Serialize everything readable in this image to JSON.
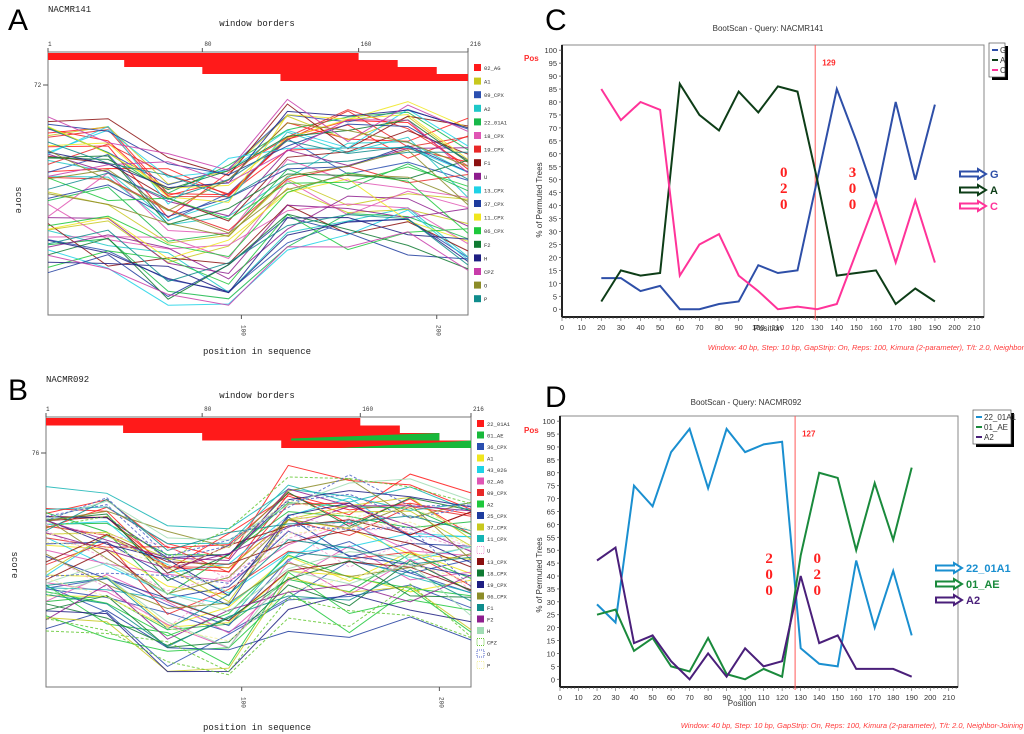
{
  "panels": {
    "A": {
      "letter": "A"
    },
    "B": {
      "letter": "B"
    },
    "C": {
      "letter": "C"
    },
    "D": {
      "letter": "D"
    }
  },
  "chart_data": [
    {
      "id": "A",
      "type": "line",
      "title": "NACMR141",
      "subtitle": "window borders",
      "xlabel": "position in sequence",
      "ylabel": "score",
      "top_ticks": [
        "1",
        "80",
        "160",
        "216"
      ],
      "bottom_ticks": [
        "100",
        "200"
      ],
      "y_tick": "72",
      "xlim": [
        1,
        216
      ],
      "top_bar_subtype": "02_AG",
      "top_bar_color": "#ff1a1a",
      "legend": [
        {
          "label": "02_AG",
          "color": "#ff1a1a"
        },
        {
          "label": "A1",
          "color": "#c8c81e"
        },
        {
          "label": "09_CPX",
          "color": "#2a4fb0"
        },
        {
          "label": "A2",
          "color": "#1ec8c8"
        },
        {
          "label": "22_01A1",
          "color": "#18b84a"
        },
        {
          "label": "18_CPX",
          "color": "#e056b4"
        },
        {
          "label": "19_CPX",
          "color": "#e82828"
        },
        {
          "label": "F1",
          "color": "#8b1010"
        },
        {
          "label": "U",
          "color": "#8e1e8e"
        },
        {
          "label": "13_CPX",
          "color": "#1ed2e6"
        },
        {
          "label": "37_CPX",
          "color": "#1e3c9e"
        },
        {
          "label": "11_CPX",
          "color": "#f0e61e"
        },
        {
          "label": "06_CPX",
          "color": "#1ec83c"
        },
        {
          "label": "F2",
          "color": "#0f7a32"
        },
        {
          "label": "H",
          "color": "#1e1e82"
        },
        {
          "label": "CPZ",
          "color": "#c83caa"
        },
        {
          "label": "O",
          "color": "#8c8c28"
        },
        {
          "label": "P",
          "color": "#0f8c8c"
        }
      ]
    },
    {
      "id": "B",
      "type": "line",
      "title": "NACMR092",
      "subtitle": "window borders",
      "xlabel": "position in sequence",
      "ylabel": "score",
      "top_ticks": [
        "1",
        "80",
        "160",
        "216"
      ],
      "bottom_ticks": [
        "100",
        "200"
      ],
      "y_tick": "76",
      "xlim": [
        1,
        216
      ],
      "top_bar_subtype": "22_01A1",
      "top_bar_color": "#ff1a1a",
      "secondary_bar_subtype": "01_AE",
      "secondary_bar_color": "#18b83a",
      "legend": [
        {
          "label": "22_01A1",
          "color": "#ff1a1a"
        },
        {
          "label": "01_AE",
          "color": "#18b83a"
        },
        {
          "label": "36_CPX",
          "color": "#2a4fb0"
        },
        {
          "label": "A1",
          "color": "#f0e61e"
        },
        {
          "label": "43_02G",
          "color": "#1ed2e6"
        },
        {
          "label": "02_AG",
          "color": "#e056b4"
        },
        {
          "label": "09_CPX",
          "color": "#e82828"
        },
        {
          "label": "A2",
          "color": "#1ec83c"
        },
        {
          "label": "25_CPX",
          "color": "#1e3c9e"
        },
        {
          "label": "37_CPX",
          "color": "#c8c81e"
        },
        {
          "label": "11_CPX",
          "color": "#14b4b4"
        },
        {
          "label": "U",
          "color": "#f0a0d2",
          "dashed": true
        },
        {
          "label": "13_CPX",
          "color": "#8b1010"
        },
        {
          "label": "18_CPX",
          "color": "#0f7a32"
        },
        {
          "label": "19_CPX",
          "color": "#1e1e82"
        },
        {
          "label": "06_CPX",
          "color": "#8c8c28"
        },
        {
          "label": "F1",
          "color": "#0f8c8c"
        },
        {
          "label": "F2",
          "color": "#8e1e8e"
        },
        {
          "label": "H",
          "color": "#a0dcb4"
        },
        {
          "label": "CPZ",
          "color": "#64c832",
          "dashed": true
        },
        {
          "label": "O",
          "color": "#5064c8",
          "dashed": true
        },
        {
          "label": "P",
          "color": "#f5f0a0",
          "dashed": true
        }
      ]
    },
    {
      "id": "C",
      "type": "line",
      "title": "BootScan - Query: NACMR141",
      "xlabel": "Position",
      "ylabel": "% of Permuted Trees",
      "xlim": [
        0,
        215
      ],
      "ylim": [
        -3,
        102
      ],
      "x_ticks": [
        0,
        10,
        20,
        30,
        40,
        50,
        60,
        70,
        80,
        90,
        100,
        110,
        120,
        130,
        140,
        150,
        160,
        170,
        180,
        190,
        200,
        210
      ],
      "y_ticks": [
        0,
        5,
        10,
        15,
        20,
        25,
        30,
        35,
        40,
        45,
        50,
        55,
        60,
        65,
        70,
        75,
        80,
        85,
        90,
        95,
        100
      ],
      "pos_label": "Pos",
      "breakpoint": 129,
      "breakpoint_label": "129",
      "footnote": "Window: 40 bp, Step: 10 bp, GapStrip: On, Reps: 100, Kimura (2-parameter), T/t: 2.0, Neighbor-Joining",
      "x": [
        20,
        30,
        40,
        50,
        60,
        70,
        80,
        90,
        100,
        110,
        120,
        130,
        140,
        150,
        160,
        170,
        180,
        190
      ],
      "series": [
        {
          "name": "G",
          "color": "#2e4fa8",
          "values": [
            12,
            12,
            7,
            9,
            0,
            0,
            2,
            3,
            17,
            14,
            15,
            50,
            85,
            65,
            43,
            80,
            50,
            79
          ]
        },
        {
          "name": "A",
          "color": "#0d3d17",
          "values": [
            3,
            15,
            13,
            14,
            87,
            75,
            69,
            84,
            76,
            86,
            84,
            50,
            13,
            14,
            15,
            2,
            8,
            3
          ]
        },
        {
          "name": "C",
          "color": "#ff3399",
          "values": [
            85,
            73,
            80,
            77,
            13,
            25,
            29,
            13,
            7,
            0,
            1,
            0,
            2,
            22,
            42,
            18,
            42,
            18
          ]
        }
      ],
      "segment_annotations": [
        {
          "x": 113,
          "y": 51,
          "digits": [
            "0",
            "2",
            "0"
          ]
        },
        {
          "x": 148,
          "y": 51,
          "digits": [
            "3",
            "0",
            "0"
          ]
        }
      ]
    },
    {
      "id": "D",
      "type": "line",
      "title": "BootScan - Query: NACMR092",
      "xlabel": "Position",
      "ylabel": "% of Permuted Trees",
      "xlim": [
        0,
        215
      ],
      "ylim": [
        -3,
        102
      ],
      "x_ticks": [
        0,
        10,
        20,
        30,
        40,
        50,
        60,
        70,
        80,
        90,
        100,
        110,
        120,
        130,
        140,
        150,
        160,
        170,
        180,
        190,
        200,
        210
      ],
      "y_ticks": [
        0,
        5,
        10,
        15,
        20,
        25,
        30,
        35,
        40,
        45,
        50,
        55,
        60,
        65,
        70,
        75,
        80,
        85,
        90,
        95,
        100
      ],
      "pos_label": "Pos",
      "breakpoint": 127,
      "breakpoint_label": "127",
      "footnote": "Window: 40 bp, Step: 10 bp, GapStrip: On, Reps: 100, Kimura (2-parameter), T/t: 2.0, Neighbor-Joining",
      "x": [
        20,
        30,
        40,
        50,
        60,
        70,
        80,
        90,
        100,
        110,
        120,
        130,
        140,
        150,
        160,
        170,
        180,
        190
      ],
      "series": [
        {
          "name": "22_01A1",
          "color": "#1a8fd0",
          "values": [
            29,
            22,
            75,
            67,
            88,
            97,
            74,
            97,
            88,
            91,
            92,
            12,
            6,
            5,
            46,
            20,
            42,
            17
          ]
        },
        {
          "name": "01_AE",
          "color": "#1a8a3c",
          "values": [
            25,
            27,
            11,
            16,
            5,
            3,
            16,
            2,
            0,
            4,
            1,
            48,
            80,
            78,
            50,
            76,
            54,
            82
          ]
        },
        {
          "name": "A2",
          "color": "#4a1f7a",
          "values": [
            46,
            51,
            14,
            17,
            7,
            0,
            10,
            1,
            12,
            5,
            7,
            40,
            14,
            17,
            4,
            4,
            4,
            1
          ]
        }
      ],
      "segment_annotations": [
        {
          "x": 113,
          "y": 45,
          "digits": [
            "2",
            "0",
            "0"
          ]
        },
        {
          "x": 139,
          "y": 45,
          "digits": [
            "0",
            "2",
            "0"
          ]
        }
      ]
    }
  ]
}
